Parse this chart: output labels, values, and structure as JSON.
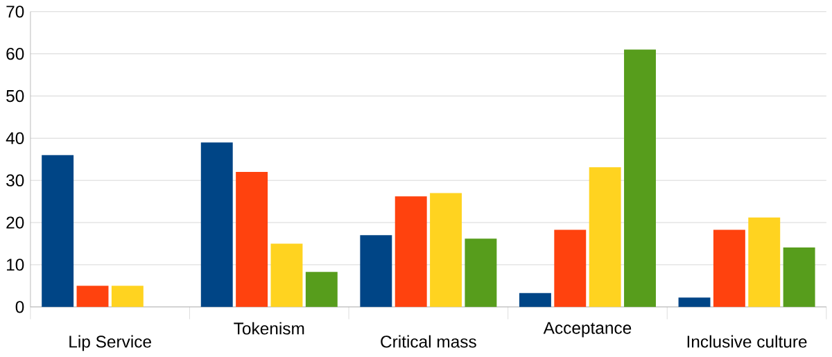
{
  "chart_data": {
    "type": "bar",
    "categories": [
      "Lip Service",
      "Tokenism",
      "Critical mass",
      "Acceptance",
      "Inclusive culture"
    ],
    "series": [
      {
        "color": "#004586",
        "values": [
          36,
          39,
          17,
          3.3,
          2.2
        ]
      },
      {
        "color": "#ff420e",
        "values": [
          5,
          32,
          26.2,
          18.3,
          18.3
        ]
      },
      {
        "color": "#ffd320",
        "values": [
          5,
          15,
          27,
          33.1,
          21.2
        ]
      },
      {
        "color": "#579d1c",
        "values": [
          null,
          8.3,
          16.2,
          61,
          14.1
        ]
      }
    ],
    "ylim": [
      0,
      70
    ],
    "yticks": [
      0,
      10,
      20,
      30,
      40,
      50,
      60,
      70
    ],
    "grid": "y"
  }
}
